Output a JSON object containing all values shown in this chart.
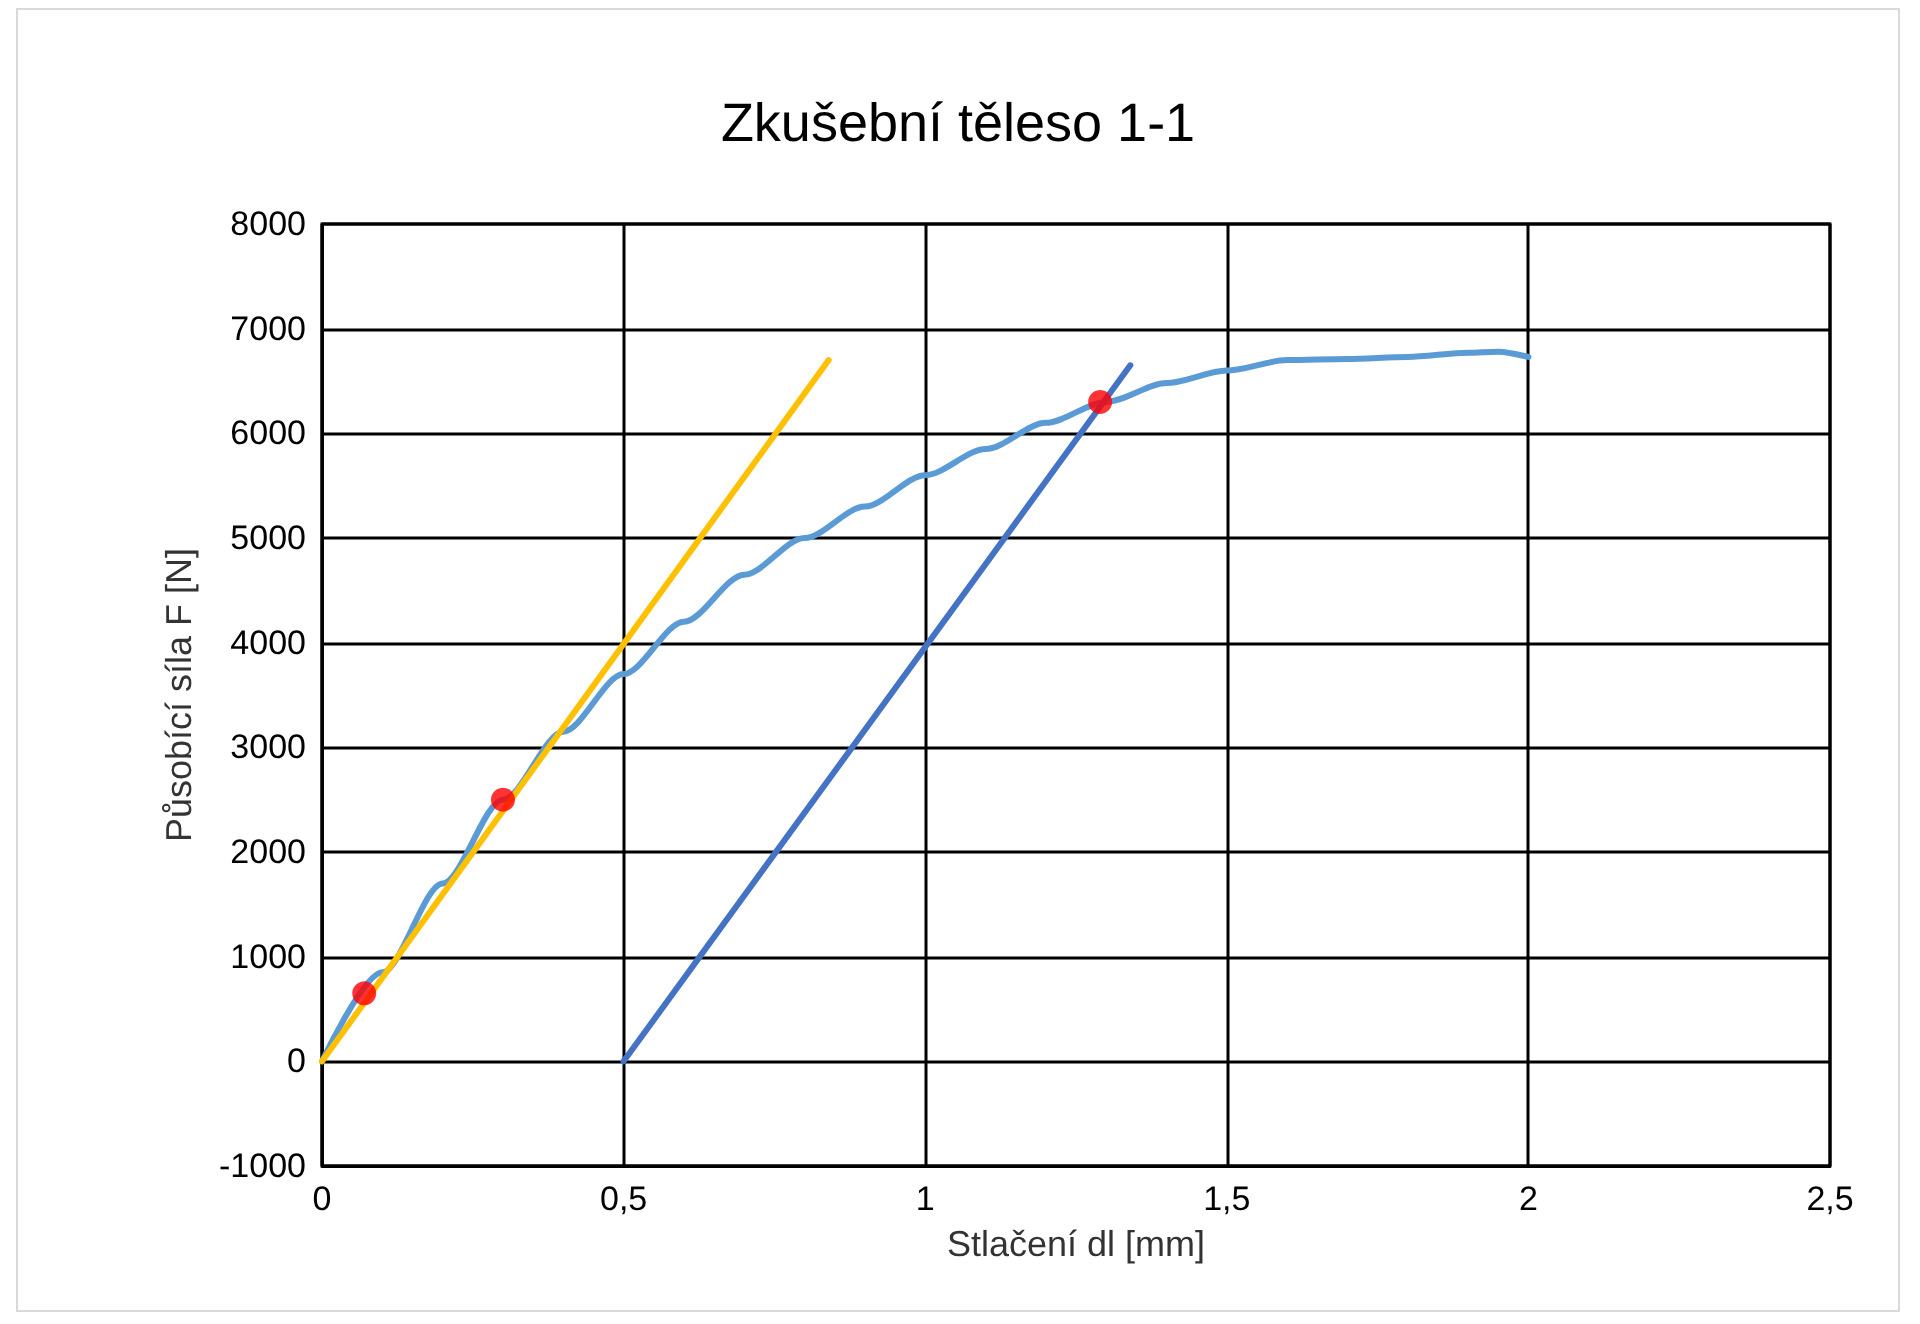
{
  "chart_data": {
    "type": "line",
    "title": "Zkušební těleso 1-1",
    "xlabel": "Stlačení dl [mm]",
    "ylabel": "Působící síla F [N]",
    "xlim": [
      0,
      2.5
    ],
    "xticks": [
      0,
      {
        "value": 0.5,
        "label": "0,5"
      },
      1,
      {
        "value": 1.5,
        "label": "1,5"
      },
      2,
      {
        "value": 2.5,
        "label": "2,5"
      }
    ],
    "ylim": [
      -1000,
      8000
    ],
    "yticks": [
      -1000,
      0,
      1000,
      2000,
      3000,
      4000,
      5000,
      6000,
      7000,
      8000
    ],
    "grid": true,
    "series": [
      {
        "type": "line",
        "color": "#5b9bd5",
        "x": [
          0,
          0.1,
          0.2,
          0.3,
          0.4,
          0.5,
          0.6,
          0.7,
          0.8,
          0.9,
          1.0,
          1.1,
          1.2,
          1.3,
          1.4,
          1.5,
          1.6,
          1.7,
          1.8,
          1.9,
          1.95,
          2.0
        ],
        "values": [
          0,
          850,
          1700,
          2500,
          3150,
          3700,
          4200,
          4650,
          5000,
          5300,
          5600,
          5850,
          6100,
          6300,
          6480,
          6600,
          6700,
          6710,
          6730,
          6770,
          6780,
          6730
        ]
      },
      {
        "type": "line",
        "color": "#ffc000",
        "x": [
          0,
          0.84
        ],
        "values": [
          0,
          6700
        ]
      },
      {
        "type": "line",
        "color": "#4472c4",
        "x": [
          0.5,
          1.34
        ],
        "values": [
          0,
          6650
        ]
      },
      {
        "type": "scatter",
        "color": "#ff0000",
        "marker": "circle",
        "x": [
          0.07,
          0.3,
          1.29
        ],
        "values": [
          650,
          2500,
          6300
        ]
      }
    ]
  }
}
